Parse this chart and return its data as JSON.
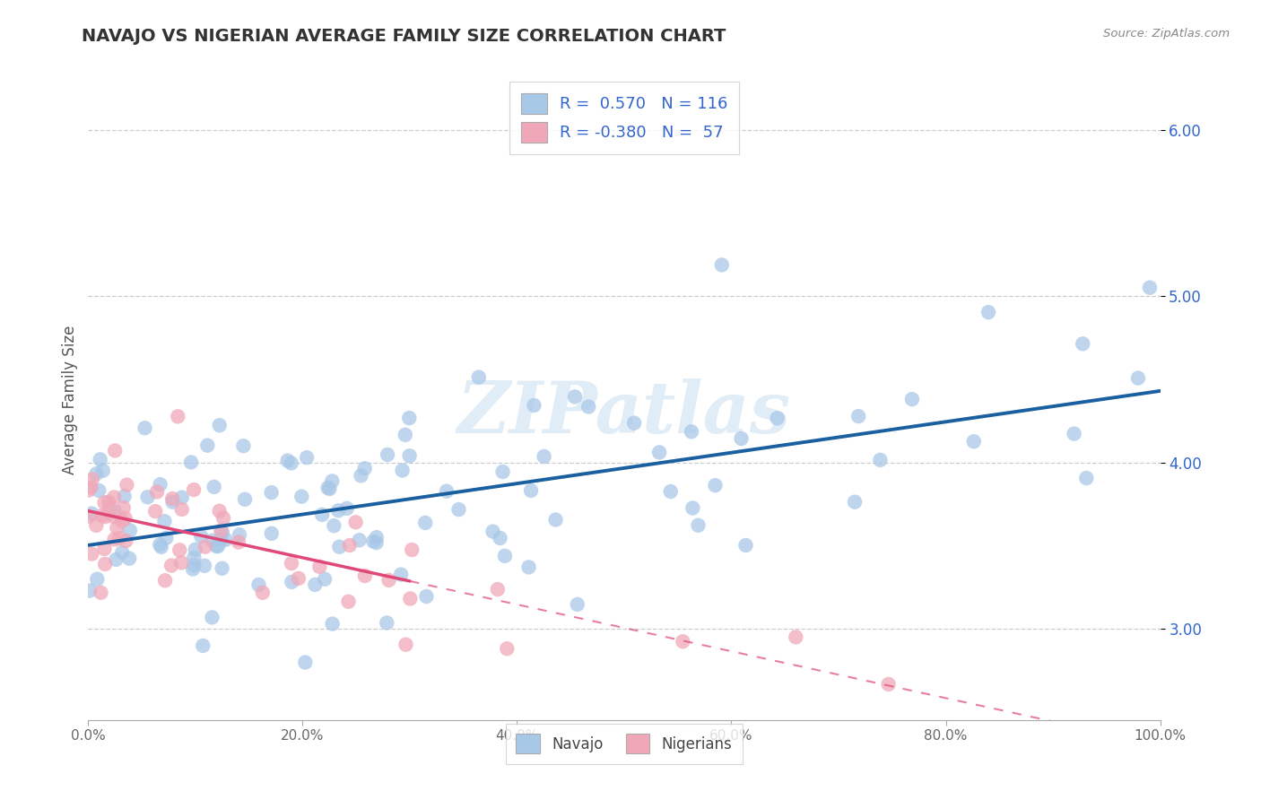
{
  "title": "NAVAJO VS NIGERIAN AVERAGE FAMILY SIZE CORRELATION CHART",
  "source": "Source: ZipAtlas.com",
  "ylabel": "Average Family Size",
  "xlim": [
    0,
    1
  ],
  "ylim": [
    2.45,
    6.3
  ],
  "yticks": [
    3.0,
    4.0,
    5.0,
    6.0
  ],
  "xticks": [
    0.0,
    0.2,
    0.4,
    0.6,
    0.8,
    1.0
  ],
  "xticklabels": [
    "0.0%",
    "20.0%",
    "40.0%",
    "60.0%",
    "80.0%",
    "100.0%"
  ],
  "yticklabels": [
    "3.00",
    "4.00",
    "5.00",
    "6.00"
  ],
  "navajo_color": "#a8c8e8",
  "nigerian_color": "#f0a8b8",
  "navajo_line_color": "#1a5fa0",
  "nigerian_line_color": "#e04878",
  "R_navajo": 0.57,
  "N_navajo": 116,
  "R_nigerian": -0.38,
  "N_nigerian": 57,
  "watermark": "ZIPatlas",
  "legend_navajo": "Navajo",
  "legend_nigerians": "Nigerians",
  "title_color": "#333333",
  "source_color": "#888888",
  "ytick_color": "#3366cc",
  "xtick_color": "#666666",
  "grid_color": "#cccccc"
}
